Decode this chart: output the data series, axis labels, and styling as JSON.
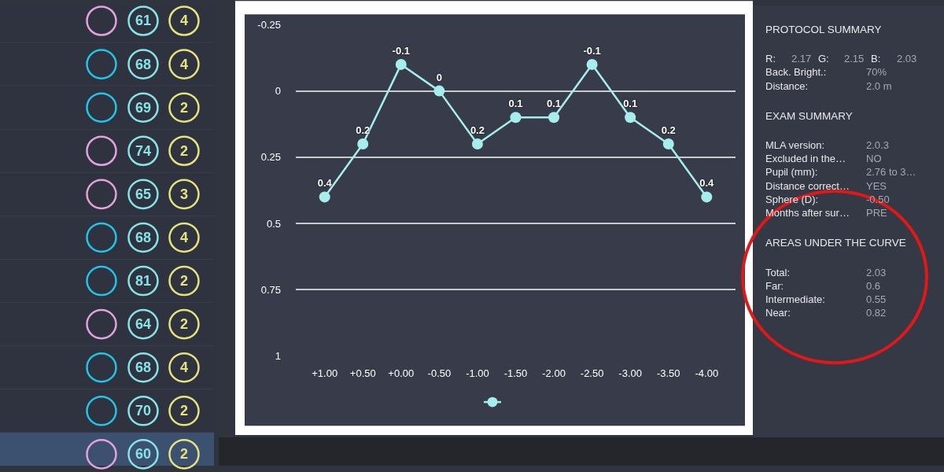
{
  "chart_data": [
    {
      "type": "other",
      "annotations": [
        "61",
        "4",
        "68",
        "4",
        "69",
        "2",
        "74",
        "2",
        "65",
        "3",
        "68",
        "4",
        "81",
        "2",
        "64",
        "2",
        "68",
        "4",
        "70",
        "2",
        "60",
        "2"
      ],
      "colors": [
        "#e3a2de",
        "#22c4e8",
        "#22c4e8",
        "#e3a2de",
        "#e3a2de",
        "#22c4e8",
        "#22c4e8",
        "#e3a2de",
        "#22c4e8",
        "#22c4e8",
        "#e3a2de"
      ]
    },
    {
      "type": "line",
      "categories": [
        "+1.00",
        "+0.50",
        "+0.00",
        "-0.50",
        "-1.00",
        "-1.50",
        "-2.00",
        "-2.50",
        "-3.00",
        "-3.50",
        "-4.00"
      ],
      "series": [
        {
          "color": "#a6eeee",
          "values": [
            0.4,
            0.2,
            -0.1,
            0,
            0.2,
            0.1,
            0.1,
            -0.1,
            0.1,
            0.2,
            0.4
          ]
        }
      ],
      "ylim": [
        1,
        -0.25
      ],
      "yticks": [
        -0.25,
        0,
        0.25,
        0.5,
        0.75,
        1
      ],
      "grid": "y",
      "marker": "circle",
      "line_style": "solid",
      "data_labels": true
    },
    {
      "type": "other",
      "title": "PROTOCOL SUMMARY",
      "annotations": [
        "R:",
        "2.17",
        "G:",
        "2.15",
        "B:",
        "2.03"
      ]
    },
    {
      "type": "other",
      "annotations": [
        "Back. Bright.:",
        "70%",
        "Distance:",
        "2.0 m"
      ]
    },
    {
      "type": "other",
      "title": "EXAM SUMMARY",
      "annotations": [
        "MLA version:",
        "2.0.3",
        "Excluded in the…",
        "NO",
        "Pupil (mm):",
        "2.76 to 3…",
        "Distance correct…",
        "YES",
        "Sphere (D):",
        "-0.50",
        "Months after sur…",
        "PRE"
      ]
    },
    {
      "type": "other",
      "title": "AREAS UNDER THE CURVE",
      "annotations": [
        "Total:",
        "2.03",
        "Far:",
        "0.6",
        "Intermediate:",
        "0.55",
        "Near:",
        "0.82"
      ]
    }
  ]
}
